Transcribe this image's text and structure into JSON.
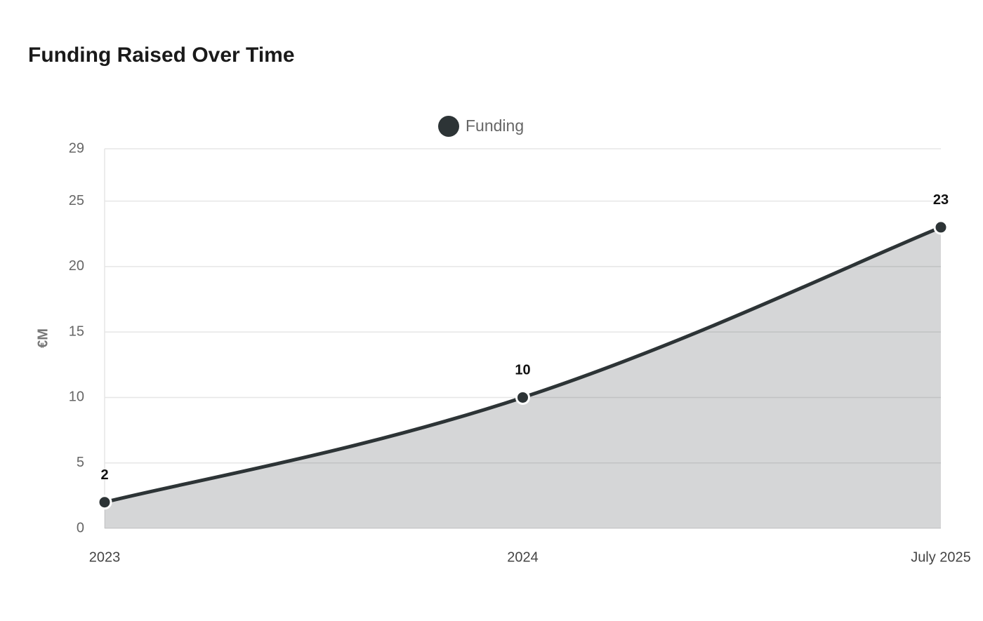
{
  "chart_data": {
    "type": "line",
    "title": "Funding Raised Over Time",
    "y_label": "€M",
    "categories": [
      "2023",
      "2024",
      "July 2025"
    ],
    "series": [
      {
        "name": "Funding",
        "color": "#2d3436",
        "values": [
          2,
          10,
          23
        ]
      }
    ],
    "ylim": [
      0,
      29
    ],
    "yticks": [
      0,
      5,
      10,
      15,
      20,
      25,
      29
    ],
    "grid": true,
    "area": true,
    "legend": "top"
  }
}
